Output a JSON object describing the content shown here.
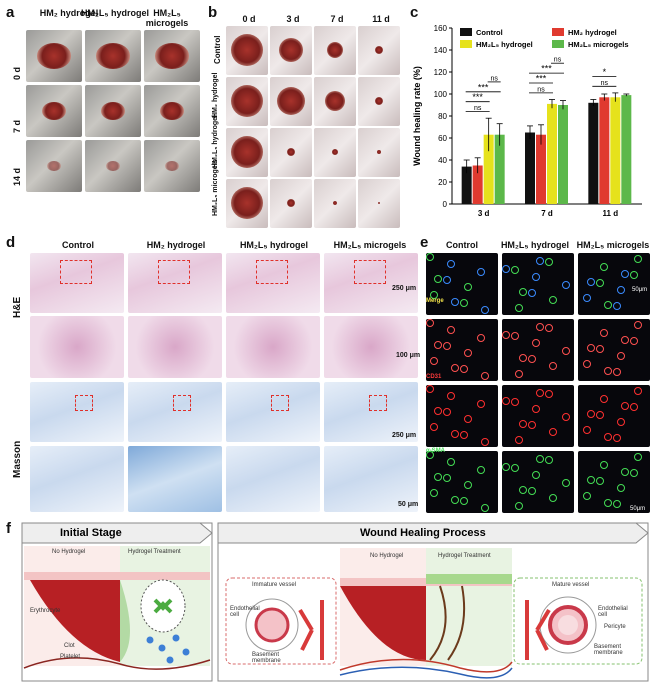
{
  "panels": {
    "a": "a",
    "b": "b",
    "c": "c",
    "d": "d",
    "e": "e",
    "f": "f"
  },
  "panel_a": {
    "cols": [
      "HM₂ hydrogel",
      "HM₂L₅ hydrogel",
      "HM₂L₅ microgels"
    ],
    "rows": [
      "0 d",
      "7 d",
      "14 d"
    ]
  },
  "panel_b": {
    "cols": [
      "0 d",
      "3 d",
      "7 d",
      "11 d"
    ],
    "rows": [
      "Control",
      "HM₂ hydrogel",
      "HM₂L₅ hydrogel",
      "HM₂L₅ microgels"
    ]
  },
  "chart_data": {
    "type": "bar",
    "categories": [
      "3 d",
      "7 d",
      "11 d"
    ],
    "series": [
      {
        "name": "Control",
        "color": "#111111",
        "values": [
          34,
          65,
          92
        ],
        "errors": [
          6,
          6,
          3
        ]
      },
      {
        "name": "HM₂ hydrogel",
        "color": "#e03a2f",
        "values": [
          35,
          63,
          97
        ],
        "errors": [
          7,
          9,
          3
        ]
      },
      {
        "name": "HM₂L₅ hydrogel",
        "color": "#e6e21c",
        "values": [
          63,
          91,
          97
        ],
        "errors": [
          15,
          4,
          4
        ]
      },
      {
        "name": "HM₂L₅ microgels",
        "color": "#5cb84a",
        "values": [
          63,
          90,
          99
        ],
        "errors": [
          10,
          4,
          1
        ]
      }
    ],
    "ylabel": "Wound healing rate (%)",
    "ylim": [
      0,
      160
    ],
    "yticks": [
      "0",
      "20",
      "40",
      "60",
      "80",
      "100",
      "120",
      "140",
      "160"
    ],
    "significance": {
      "3 d": [
        "ns",
        "***",
        "***",
        "ns"
      ],
      "7 d": [
        "ns",
        "***",
        "***",
        "ns"
      ],
      "11 d": [
        "ns",
        "*"
      ]
    }
  },
  "panel_d": {
    "cols": [
      "Control",
      "HM₂ hydrogel",
      "HM₂L₅ hydrogel",
      "HM₂L₅ microgels"
    ],
    "rows": [
      "H&E",
      "Masson"
    ],
    "scales": [
      "250 μm",
      "100 μm",
      "250 μm",
      "50 μm"
    ]
  },
  "panel_e": {
    "cols": [
      "Control",
      "HM₂L₅ hydrogel",
      "HM₂L₅ microgels"
    ],
    "rows": [
      "Merge",
      "CD31",
      "α-SMA"
    ],
    "scales": [
      "50μm",
      "50μm"
    ]
  },
  "panel_f": {
    "title_left": "Initial Stage",
    "title_right": "Wound Healing Process",
    "left_labels": [
      "No Hydrogel",
      "Hydrogel Treatment"
    ],
    "right_labels": [
      "No Hydrogel",
      "Hydrogel Treatment"
    ],
    "cells": [
      "Erythrocyte",
      "Clot",
      "Platelet"
    ],
    "vessels": [
      "Immature vessel",
      "Mature vessel"
    ],
    "parts_left": [
      "Endothelial cell",
      "Basement membrane"
    ],
    "parts_right": [
      "Endothelial cell",
      "Pericyte",
      "Basement membrane"
    ]
  }
}
